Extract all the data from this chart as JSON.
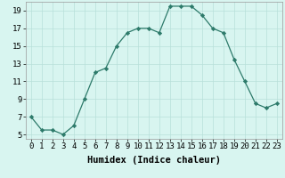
{
  "x": [
    0,
    1,
    2,
    3,
    4,
    5,
    6,
    7,
    8,
    9,
    10,
    11,
    12,
    13,
    14,
    15,
    16,
    17,
    18,
    19,
    20,
    21,
    22,
    23
  ],
  "y": [
    7.0,
    5.5,
    5.5,
    5.0,
    6.0,
    9.0,
    12.0,
    12.5,
    15.0,
    16.5,
    17.0,
    17.0,
    16.5,
    19.5,
    19.5,
    19.5,
    18.5,
    17.0,
    16.5,
    13.5,
    11.0,
    8.5,
    8.0,
    8.5
  ],
  "line_color": "#2d7a6a",
  "marker_color": "#2d7a6a",
  "bg_color": "#d8f5f0",
  "grid_color": "#b8e0da",
  "xlabel": "Humidex (Indice chaleur)",
  "xlim": [
    -0.5,
    23.5
  ],
  "ylim": [
    4.5,
    20.0
  ],
  "ytick_values": [
    5,
    7,
    9,
    11,
    13,
    15,
    17,
    19
  ],
  "tick_fontsize": 6.5,
  "xlabel_fontsize": 7.5
}
